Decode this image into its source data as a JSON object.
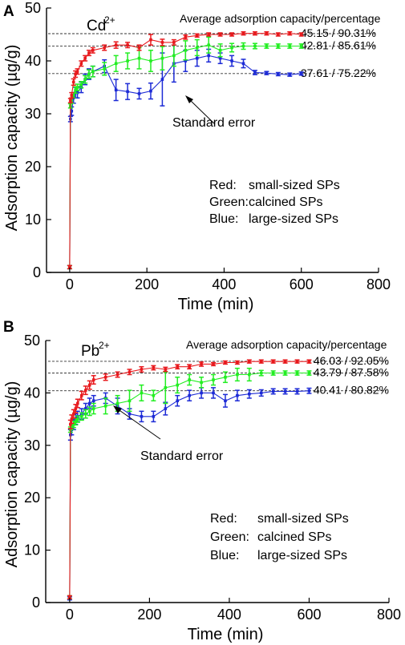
{
  "chart_data": [
    {
      "panel_label": "A",
      "type": "line",
      "species_label": "Cd",
      "species_charge": "2+",
      "xlabel": "Time (min)",
      "ylabel": "Adsorption capacity (µg/g)",
      "xlim": [
        -60,
        800
      ],
      "ylim": [
        0,
        50
      ],
      "xticks": [
        0,
        200,
        400,
        600,
        800
      ],
      "yticks": [
        0,
        10,
        20,
        30,
        40,
        50
      ],
      "note_header": "Average adsorption capacity/percentage",
      "annotation": "Standard error",
      "legend": [
        {
          "key": "Red:",
          "text": "small-sized SPs"
        },
        {
          "key": "Green:",
          "text": "calcined SPs"
        },
        {
          "key": "Blue:",
          "text": "large-sized SPs"
        }
      ],
      "reference_lines": [
        {
          "y": 45.15,
          "label": "45.15 / 90.31%"
        },
        {
          "y": 42.81,
          "label": "42.81 / 85.61%"
        },
        {
          "y": 37.61,
          "label": "37.61 / 75.22%"
        }
      ],
      "series": [
        {
          "color": "#e8191d",
          "points": [
            [
              0,
              1
            ],
            [
              2,
              32.5
            ],
            [
              5,
              33.5
            ],
            [
              10,
              36
            ],
            [
              15,
              37.5
            ],
            [
              20,
              38
            ],
            [
              30,
              39.5
            ],
            [
              40,
              40.5
            ],
            [
              50,
              41.5
            ],
            [
              60,
              42
            ],
            [
              90,
              42.5
            ],
            [
              120,
              43
            ],
            [
              150,
              43
            ],
            [
              180,
              42.5
            ],
            [
              210,
              44
            ],
            [
              240,
              43.5
            ],
            [
              270,
              43.5
            ],
            [
              300,
              44.5
            ],
            [
              330,
              44.8
            ],
            [
              360,
              45
            ],
            [
              390,
              45
            ],
            [
              420,
              45
            ],
            [
              450,
              45.2
            ],
            [
              480,
              45.2
            ],
            [
              510,
              45.2
            ],
            [
              540,
              45
            ],
            [
              570,
              45.2
            ],
            [
              600,
              45
            ]
          ],
          "errors": [
            0.3,
            0.4,
            0.5,
            0.6,
            0.6,
            0.5,
            0.5,
            0.5,
            0.5,
            0.5,
            0.5,
            0.6,
            0.5,
            0.5,
            1,
            0.6,
            0.5,
            0.4,
            0.3,
            0.3,
            0.3,
            0.3,
            0.3,
            0.3,
            0.3,
            0.3,
            0.3,
            0.3
          ]
        },
        {
          "color": "#22ee22",
          "points": [
            [
              0,
              1
            ],
            [
              2,
              31.5
            ],
            [
              5,
              32.5
            ],
            [
              10,
              33.5
            ],
            [
              15,
              34.5
            ],
            [
              20,
              35
            ],
            [
              30,
              35.5
            ],
            [
              40,
              36.5
            ],
            [
              50,
              37.5
            ],
            [
              60,
              38
            ],
            [
              90,
              38.5
            ],
            [
              120,
              39.5
            ],
            [
              150,
              40
            ],
            [
              180,
              40.5
            ],
            [
              210,
              40
            ],
            [
              240,
              40.5
            ],
            [
              270,
              41
            ],
            [
              300,
              42
            ],
            [
              330,
              42.5
            ],
            [
              360,
              43
            ],
            [
              390,
              42
            ],
            [
              420,
              42.5
            ],
            [
              450,
              42.8
            ],
            [
              480,
              42.8
            ],
            [
              510,
              42.8
            ],
            [
              540,
              42.8
            ],
            [
              570,
              42.8
            ],
            [
              600,
              42.8
            ]
          ],
          "errors": [
            0.3,
            0.4,
            0.5,
            0.5,
            0.6,
            0.6,
            0.6,
            0.7,
            0.8,
            1,
            1.2,
            1.5,
            1.5,
            2,
            2,
            2.2,
            2,
            1.8,
            1.5,
            1.5,
            1.2,
            0.8,
            0.6,
            0.5,
            0.4,
            0.4,
            0.4,
            0.4
          ]
        },
        {
          "color": "#1d2bd6",
          "points": [
            [
              0,
              1
            ],
            [
              2,
              29
            ],
            [
              5,
              30.5
            ],
            [
              10,
              33
            ],
            [
              15,
              34
            ],
            [
              20,
              34
            ],
            [
              30,
              35
            ],
            [
              40,
              36.5
            ],
            [
              50,
              37.5
            ],
            [
              60,
              38
            ],
            [
              90,
              39
            ],
            [
              120,
              34.5
            ],
            [
              150,
              34.2
            ],
            [
              180,
              33.8
            ],
            [
              210,
              34.3
            ],
            [
              240,
              36.5
            ],
            [
              270,
              39.5
            ],
            [
              300,
              40
            ],
            [
              330,
              40.5
            ],
            [
              360,
              41
            ],
            [
              390,
              40.5
            ],
            [
              420,
              40
            ],
            [
              450,
              39.5
            ],
            [
              480,
              37.8
            ],
            [
              510,
              37.7
            ],
            [
              540,
              37.5
            ],
            [
              570,
              37.4
            ],
            [
              600,
              37.6
            ]
          ],
          "errors": [
            0.3,
            0.5,
            0.8,
            1,
            1,
            1,
            1,
            1,
            1,
            1,
            1.2,
            2,
            1.5,
            1,
            1.5,
            5,
            3.5,
            2,
            1.5,
            1.2,
            1,
            1,
            0.8,
            0.4,
            0.3,
            0.3,
            0.3,
            0.3
          ]
        }
      ]
    },
    {
      "panel_label": "B",
      "type": "line",
      "species_label": "Pb",
      "species_charge": "2+",
      "xlabel": "Time (min)",
      "ylabel": "Adsorption capacity (µg/g)",
      "xlim": [
        -60,
        800
      ],
      "ylim": [
        0,
        50
      ],
      "xticks": [
        0,
        200,
        400,
        600,
        800
      ],
      "yticks": [
        0,
        10,
        20,
        30,
        40,
        50
      ],
      "note_header": "Average adsorption capacity/percentage",
      "annotation": "Standard error",
      "legend": [
        {
          "key": "Red:",
          "text": "small-sized SPs"
        },
        {
          "key": "Green:",
          "text": "calcined SPs"
        },
        {
          "key": "Blue:",
          "text": "large-sized SPs"
        }
      ],
      "reference_lines": [
        {
          "y": 46.03,
          "label": "46.03 / 92.05%"
        },
        {
          "y": 43.79,
          "label": "43.79 / 87.58%"
        },
        {
          "y": 40.41,
          "label": "40.41 / 80.82%"
        }
      ],
      "series": [
        {
          "color": "#e8191d",
          "points": [
            [
              0,
              1
            ],
            [
              2,
              34
            ],
            [
              5,
              35
            ],
            [
              10,
              36
            ],
            [
              15,
              37
            ],
            [
              20,
              38
            ],
            [
              30,
              39.5
            ],
            [
              40,
              40.5
            ],
            [
              50,
              41.5
            ],
            [
              60,
              42.5
            ],
            [
              90,
              43
            ],
            [
              120,
              43.5
            ],
            [
              150,
              44
            ],
            [
              180,
              44.5
            ],
            [
              210,
              44.8
            ],
            [
              240,
              44.5
            ],
            [
              270,
              45
            ],
            [
              300,
              45
            ],
            [
              330,
              45.5
            ],
            [
              360,
              45.5
            ],
            [
              390,
              45.8
            ],
            [
              420,
              45.8
            ],
            [
              450,
              46
            ],
            [
              480,
              46
            ],
            [
              510,
              46
            ],
            [
              540,
              46
            ],
            [
              570,
              46
            ],
            [
              600,
              46
            ]
          ],
          "errors": [
            0.3,
            0.8,
            0.8,
            0.8,
            0.8,
            0.8,
            0.8,
            0.8,
            0.8,
            0.8,
            0.6,
            0.5,
            0.5,
            0.5,
            0.4,
            0.4,
            0.4,
            0.4,
            0.4,
            0.3,
            0.3,
            0.3,
            0.3,
            0.3,
            0.3,
            0.3,
            0.3,
            0.3
          ]
        },
        {
          "color": "#22ee22",
          "points": [
            [
              0,
              1
            ],
            [
              2,
              33
            ],
            [
              5,
              33.5
            ],
            [
              10,
              34
            ],
            [
              15,
              34.5
            ],
            [
              20,
              35
            ],
            [
              30,
              35.5
            ],
            [
              40,
              36
            ],
            [
              50,
              36.5
            ],
            [
              60,
              37
            ],
            [
              90,
              37.5
            ],
            [
              120,
              38
            ],
            [
              150,
              38.5
            ],
            [
              180,
              40
            ],
            [
              210,
              39.5
            ],
            [
              240,
              41
            ],
            [
              270,
              41.5
            ],
            [
              300,
              42.5
            ],
            [
              330,
              42
            ],
            [
              360,
              42.5
            ],
            [
              390,
              43
            ],
            [
              420,
              43.5
            ],
            [
              450,
              43.5
            ],
            [
              480,
              43.8
            ],
            [
              510,
              43.8
            ],
            [
              540,
              43.8
            ],
            [
              570,
              43.8
            ],
            [
              600,
              43.8
            ]
          ],
          "errors": [
            0.3,
            0.5,
            0.5,
            0.6,
            0.6,
            0.6,
            0.7,
            0.8,
            0.8,
            1,
            1.5,
            1.5,
            2,
            1.5,
            1,
            3,
            1.5,
            1,
            1,
            1,
            1,
            1.2,
            1.2,
            0.5,
            0.4,
            0.4,
            0.4,
            0.4
          ]
        },
        {
          "color": "#1d2bd6",
          "points": [
            [
              0,
              0.8
            ],
            [
              2,
              32
            ],
            [
              5,
              33
            ],
            [
              10,
              34
            ],
            [
              15,
              35
            ],
            [
              20,
              35.5
            ],
            [
              30,
              36
            ],
            [
              40,
              37
            ],
            [
              50,
              38
            ],
            [
              60,
              38.5
            ],
            [
              90,
              39
            ],
            [
              120,
              37.5
            ],
            [
              150,
              36
            ],
            [
              180,
              35.5
            ],
            [
              210,
              35.5
            ],
            [
              240,
              37
            ],
            [
              270,
              38.5
            ],
            [
              300,
              39.5
            ],
            [
              330,
              40
            ],
            [
              360,
              40
            ],
            [
              390,
              38.5
            ],
            [
              420,
              39.5
            ],
            [
              450,
              39.8
            ],
            [
              480,
              40
            ],
            [
              510,
              40.3
            ],
            [
              540,
              40.3
            ],
            [
              570,
              40.3
            ],
            [
              600,
              40.4
            ]
          ],
          "errors": [
            0.3,
            1,
            1,
            1,
            1,
            1,
            1,
            1,
            1,
            1,
            1,
            1.5,
            1,
            1,
            1,
            1.2,
            1,
            1,
            1,
            1,
            1.2,
            1,
            0.8,
            0.6,
            0.5,
            0.5,
            0.5,
            0.5
          ]
        }
      ]
    }
  ]
}
